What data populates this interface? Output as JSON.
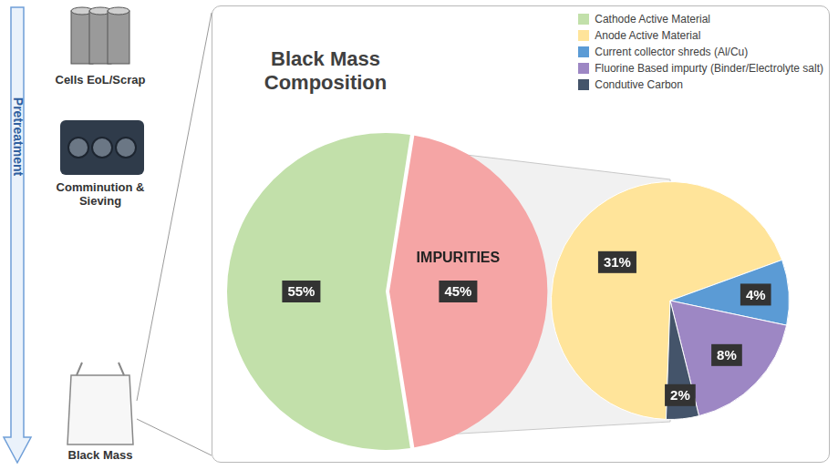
{
  "pretreatment": {
    "label": "Pretreatment",
    "steps": [
      "Cells EoL/Scrap",
      "Comminution & Sieving",
      "Black Mass"
    ]
  },
  "chart_data": [
    {
      "type": "pie",
      "title": "Black Mass Composition",
      "categories": [
        "Cathode Active Material",
        "IMPURITIES"
      ],
      "values": [
        55,
        45
      ],
      "value_labels": [
        "55%",
        "45%"
      ],
      "colors": [
        "#c2e0aa",
        "#f5a5a5"
      ],
      "data_labels": true,
      "legend": "top-right"
    },
    {
      "type": "pie",
      "categories": [
        "Anode Active Material",
        "Current collector shreds (Al/Cu)",
        "Fluorine Based impurty (Binder/Electrolyte salt)",
        "Condutive Carbon"
      ],
      "values": [
        31,
        4,
        8,
        2
      ],
      "value_labels": [
        "31%",
        "4%",
        "8%",
        "2%"
      ],
      "colors": [
        "#ffe49a",
        "#5b9bd5",
        "#9d87c4",
        "#44546a"
      ],
      "data_labels": true
    }
  ]
}
